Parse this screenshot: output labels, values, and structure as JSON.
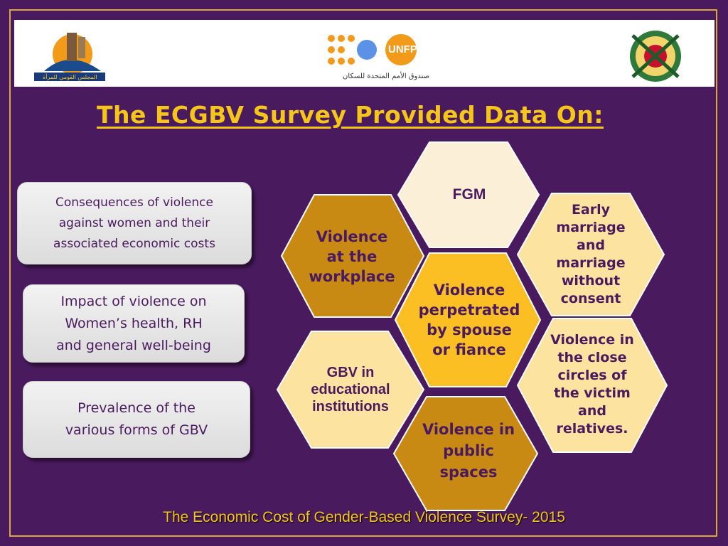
{
  "header": {
    "unfpa_label": "UNFPA",
    "unfpa_arabic": "صندوق الأمم المتحدة للسكان",
    "left_logo_caption": "المجلس القومي للمرأة"
  },
  "title": "The ECGBV Survey Provided Data On:",
  "cards": [
    {
      "lines": [
        "Consequences of violence",
        "against women and their",
        "associated economic costs"
      ]
    },
    {
      "lines": [
        "Impact of violence on",
        "Women’s health, RH",
        "and general well-being"
      ]
    },
    {
      "lines": [
        "Prevalence of the",
        "various forms of GBV"
      ]
    }
  ],
  "hexes": {
    "fgm": "FGM",
    "workplace": [
      "Violence",
      "at the",
      "workplace"
    ],
    "spouse": [
      "Violence",
      "perpetrated",
      "by spouse",
      "or fiance"
    ],
    "early_marriage": [
      "Early",
      "marriage",
      "and",
      "marriage",
      "without",
      "consent"
    ],
    "close_circles": [
      "Violence in",
      "the close",
      "circles of",
      "the victim",
      "and",
      "relatives."
    ],
    "educational": [
      "GBV in",
      "educational",
      "institutions"
    ],
    "public": [
      "Violence in",
      "public",
      "spaces"
    ]
  },
  "colors": {
    "background": "#4a1a5e",
    "gold": "#f5c518",
    "hex_light": "#fde9b0",
    "hex_pale": "#fde0a0",
    "hex_dark": "#c98a14",
    "hex_mid": "#fbbf24"
  },
  "footer": "The Economic Cost of Gender-Based Violence Survey- 2015"
}
